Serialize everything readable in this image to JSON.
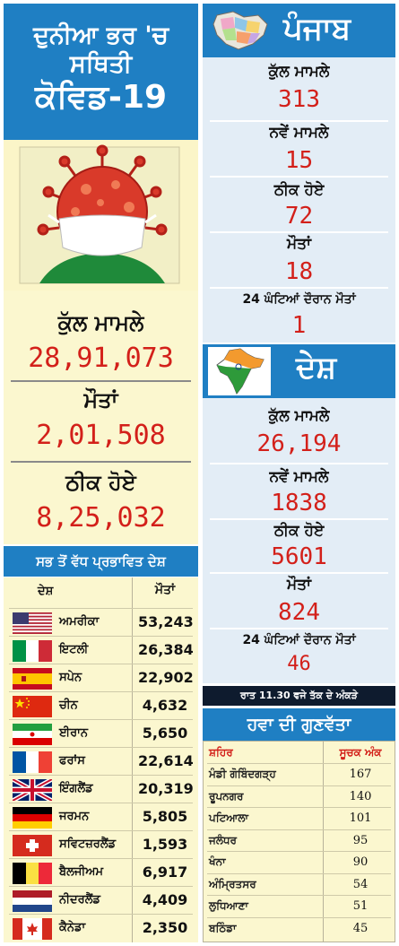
{
  "header": {
    "line1": "ਦੁਨੀਆ ਭਰ 'ਚ ਸਥਿਤੀ",
    "line2": "ਕੋਵਿਡ-19"
  },
  "world": {
    "total_cases_label": "ਕੁੱਲ ਮਾਮਲੇ",
    "total_cases": "28,91,073",
    "deaths_label": "ਮੌਤਾਂ",
    "deaths": "2,01,508",
    "recovered_label": "ਠੀਕ ਹੋਏ",
    "recovered": "8,25,032"
  },
  "countries": {
    "title": "ਸਭ ਤੋਂ ਵੱਧ ਪ੍ਰਭਾਵਿਤ ਦੇਸ਼",
    "col_country": "ਦੇਸ਼",
    "col_deaths": "ਮੌਤਾਂ",
    "rows": [
      {
        "name": "ਅਮਰੀਕਾ",
        "deaths": "53,243",
        "flag": "usa-flag-icon"
      },
      {
        "name": "ਇਟਲੀ",
        "deaths": "26,384",
        "flag": "italy-flag-icon"
      },
      {
        "name": "ਸਪੇਨ",
        "deaths": "22,902",
        "flag": "spain-flag-icon"
      },
      {
        "name": "ਚੀਨ",
        "deaths": "4,632",
        "flag": "china-flag-icon"
      },
      {
        "name": "ਈਰਾਨ",
        "deaths": "5,650",
        "flag": "iran-flag-icon"
      },
      {
        "name": "ਫਰਾਂਸ",
        "deaths": "22,614",
        "flag": "france-flag-icon"
      },
      {
        "name": "ਇੰਗਲੈਂਡ",
        "deaths": "20,319",
        "flag": "uk-flag-icon"
      },
      {
        "name": "ਜਰਮਨ",
        "deaths": "5,805",
        "flag": "germany-flag-icon"
      },
      {
        "name": "ਸਵਿਟਜ਼ਰਲੈਂਡ",
        "deaths": "1,593",
        "flag": "switzerland-flag-icon"
      },
      {
        "name": "ਬੈਲਜੀਅਮ",
        "deaths": "6,917",
        "flag": "belgium-flag-icon"
      },
      {
        "name": "ਨੀਦਰਲੈਂਡ",
        "deaths": "4,409",
        "flag": "netherlands-flag-icon"
      },
      {
        "name": "ਕੈਨੇਡਾ",
        "deaths": "2,350",
        "flag": "canada-flag-icon"
      }
    ]
  },
  "punjab": {
    "title": "ਪੰਜਾਬ",
    "total_cases_label": "ਕੁੱਲ ਮਾਮਲੇ",
    "total_cases": "313",
    "new_cases_label": "ਨਵੇਂ ਮਾਮਲੇ",
    "new_cases": "15",
    "recovered_label": "ਠੀਕ ਹੋਏ",
    "recovered": "72",
    "deaths_label": "ਮੌਤਾਂ",
    "deaths": "18",
    "deaths_24h_label": "24 ਘੰਟਿਆਂ ਦੌਰਾਨ ਮੌਤਾਂ",
    "deaths_24h": "1"
  },
  "india": {
    "title": "ਦੇਸ਼",
    "total_cases_label": "ਕੁੱਲ ਮਾਮਲੇ",
    "total_cases": "26,194",
    "new_cases_label": "ਨਵੇਂ ਮਾਮਲੇ",
    "new_cases": "1838",
    "recovered_label": "ਠੀਕ ਹੋਏ",
    "recovered": "5601",
    "deaths_label": "ਮੌਤਾਂ",
    "deaths": "824",
    "deaths_24h_label": "24 ਘੰਟਿਆਂ ਦੌਰਾਨ ਮੌਤਾਂ",
    "deaths_24h": "46"
  },
  "note": "ਰਾਤ 11.30 ਵਜੇ ਤੱਕ ਦੇ ਅੰਕੜੇ",
  "air_quality": {
    "title": "ਹਵਾ ਦੀ ਗੁਣਵੱਤਾ",
    "col_city": "ਸ਼ਹਿਰ",
    "col_index": "ਸੂਚਕ ਅੰਕ",
    "rows": [
      {
        "city": "ਮੰਡੀ ਗੋਬਿੰਦਗੜ੍ਹ",
        "index": "167"
      },
      {
        "city": "ਰੂਪਨਗਰ",
        "index": "140"
      },
      {
        "city": "ਪਟਿਆਲਾ",
        "index": "101"
      },
      {
        "city": "ਜਲੰਧਰ",
        "index": "95"
      },
      {
        "city": "ਖੰਨਾ",
        "index": "90"
      },
      {
        "city": "ਅੰਮ੍ਰਿਤਸਰ",
        "index": "54"
      },
      {
        "city": "ਲੁਧਿਆਣਾ",
        "index": "51"
      },
      {
        "city": "ਬਠਿੰਡਾ",
        "index": "45"
      }
    ]
  },
  "colors": {
    "header_blue": "#1f7fc3",
    "value_red": "#d3201a",
    "panel_cream": "#fbf7cf",
    "panel_blue": "#e3edf6"
  }
}
